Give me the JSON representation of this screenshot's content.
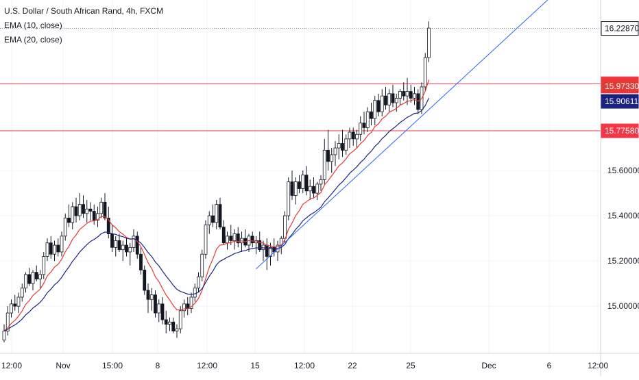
{
  "chart_data": {
    "type": "candlestick",
    "title": "U.S. Dollar / South African Rand, 4h, FXCM",
    "indicators": [
      "EMA (10, close)",
      "EMA (20, close)"
    ],
    "colors": {
      "up_candle": "#ffffff",
      "down_candle": "#131722",
      "candle_outline": "#131722",
      "ema10": "#e53935",
      "ema20": "#1a237e",
      "trendline": "#2962ff",
      "hline": "#f23645",
      "grid": "#f0f3fa",
      "axis_text": "#131722"
    },
    "y_axis": {
      "range": [
        14.84,
        16.3
      ],
      "ticks": [
        "15.00000",
        "15.20000",
        "15.40000",
        "15.60000"
      ]
    },
    "x_axis": {
      "ticks": [
        "12:00",
        "Nov",
        "15:00",
        "8",
        "12:00",
        "15",
        "12:00",
        "22",
        "25",
        "Dec",
        "6",
        "12:00"
      ]
    },
    "price_labels": [
      {
        "value": "16.22870",
        "kind": "last"
      },
      {
        "value": "15.98438",
        "kind": "hline"
      },
      {
        "value": "15.97330",
        "kind": "ema10"
      },
      {
        "value": "15.90611",
        "kind": "ema20"
      },
      {
        "value": "15.77580",
        "kind": "hline"
      }
    ],
    "horizontal_levels": [
      15.98438,
      15.7758
    ],
    "last_price": 16.2287,
    "trendline": {
      "from": [
        70,
        15.165
      ],
      "to": [
        138,
        16.305
      ]
    },
    "candles": [
      [
        14.85,
        14.92,
        14.84,
        14.89
      ],
      [
        14.89,
        15.0,
        14.87,
        14.97
      ],
      [
        14.97,
        15.03,
        14.95,
        15.01
      ],
      [
        15.01,
        15.05,
        14.98,
        15.0
      ],
      [
        15.0,
        15.06,
        14.97,
        15.04
      ],
      [
        15.04,
        15.1,
        15.02,
        15.08
      ],
      [
        15.08,
        15.15,
        15.06,
        15.14
      ],
      [
        15.14,
        15.17,
        15.09,
        15.1
      ],
      [
        15.1,
        15.16,
        15.07,
        15.15
      ],
      [
        15.15,
        15.18,
        15.11,
        15.12
      ],
      [
        15.12,
        15.16,
        15.08,
        15.14
      ],
      [
        15.14,
        15.24,
        15.12,
        15.22
      ],
      [
        15.22,
        15.3,
        15.2,
        15.28
      ],
      [
        15.28,
        15.31,
        15.21,
        15.23
      ],
      [
        15.23,
        15.29,
        15.2,
        15.27
      ],
      [
        15.27,
        15.3,
        15.22,
        15.24
      ],
      [
        15.24,
        15.33,
        15.22,
        15.31
      ],
      [
        15.31,
        15.41,
        15.29,
        15.39
      ],
      [
        15.39,
        15.45,
        15.35,
        15.37
      ],
      [
        15.37,
        15.46,
        15.34,
        15.44
      ],
      [
        15.44,
        15.48,
        15.37,
        15.4
      ],
      [
        15.4,
        15.5,
        15.38,
        15.45
      ],
      [
        15.45,
        15.49,
        15.39,
        15.41
      ],
      [
        15.41,
        15.47,
        15.37,
        15.43
      ],
      [
        15.43,
        15.46,
        15.38,
        15.42
      ],
      [
        15.42,
        15.45,
        15.36,
        15.38
      ],
      [
        15.38,
        15.44,
        15.35,
        15.41
      ],
      [
        15.41,
        15.48,
        15.39,
        15.46
      ],
      [
        15.46,
        15.5,
        15.38,
        15.39
      ],
      [
        15.39,
        15.44,
        15.3,
        15.32
      ],
      [
        15.32,
        15.36,
        15.24,
        15.26
      ],
      [
        15.26,
        15.31,
        15.22,
        15.29
      ],
      [
        15.29,
        15.32,
        15.24,
        15.25
      ],
      [
        15.25,
        15.29,
        15.2,
        15.27
      ],
      [
        15.27,
        15.3,
        15.22,
        15.24
      ],
      [
        15.24,
        15.28,
        15.18,
        15.26
      ],
      [
        15.26,
        15.34,
        15.24,
        15.31
      ],
      [
        15.31,
        15.33,
        15.21,
        15.23
      ],
      [
        15.23,
        15.26,
        15.14,
        15.16
      ],
      [
        15.16,
        15.18,
        15.05,
        15.07
      ],
      [
        15.07,
        15.1,
        14.97,
        15.03
      ],
      [
        15.03,
        15.08,
        14.98,
        15.05
      ],
      [
        15.05,
        15.07,
        14.95,
        14.97
      ],
      [
        14.97,
        15.03,
        14.93,
        15.01
      ],
      [
        15.01,
        15.04,
        14.92,
        14.94
      ],
      [
        14.94,
        14.98,
        14.88,
        14.92
      ],
      [
        14.92,
        14.95,
        14.89,
        14.93
      ],
      [
        14.93,
        14.95,
        14.88,
        14.89
      ],
      [
        14.89,
        14.92,
        14.86,
        14.9
      ],
      [
        14.9,
        15.0,
        14.88,
        14.98
      ],
      [
        14.98,
        15.03,
        14.95,
        15.01
      ],
      [
        15.01,
        15.04,
        14.96,
        14.99
      ],
      [
        14.99,
        15.06,
        14.97,
        15.04
      ],
      [
        15.04,
        15.1,
        15.02,
        15.08
      ],
      [
        15.08,
        15.15,
        15.06,
        15.13
      ],
      [
        15.13,
        15.25,
        15.11,
        15.23
      ],
      [
        15.23,
        15.38,
        15.21,
        15.36
      ],
      [
        15.36,
        15.42,
        15.32,
        15.4
      ],
      [
        15.4,
        15.45,
        15.35,
        15.37
      ],
      [
        15.37,
        15.47,
        15.34,
        15.45
      ],
      [
        15.45,
        15.48,
        15.34,
        15.35
      ],
      [
        15.35,
        15.38,
        15.27,
        15.28
      ],
      [
        15.28,
        15.33,
        15.25,
        15.31
      ],
      [
        15.31,
        15.36,
        15.27,
        15.29
      ],
      [
        15.29,
        15.34,
        15.25,
        15.32
      ],
      [
        15.32,
        15.35,
        15.26,
        15.28
      ],
      [
        15.28,
        15.33,
        15.24,
        15.3
      ],
      [
        15.3,
        15.34,
        15.26,
        15.27
      ],
      [
        15.27,
        15.32,
        15.24,
        15.31
      ],
      [
        15.31,
        15.33,
        15.26,
        15.28
      ],
      [
        15.28,
        15.31,
        15.23,
        15.29
      ],
      [
        15.29,
        15.33,
        15.24,
        15.25
      ],
      [
        15.25,
        15.29,
        15.2,
        15.27
      ],
      [
        15.27,
        15.3,
        15.16,
        15.22
      ],
      [
        15.22,
        15.28,
        15.18,
        15.26
      ],
      [
        15.26,
        15.3,
        15.22,
        15.24
      ],
      [
        15.24,
        15.29,
        15.2,
        15.27
      ],
      [
        15.27,
        15.31,
        15.23,
        15.3
      ],
      [
        15.3,
        15.42,
        15.28,
        15.4
      ],
      [
        15.4,
        15.57,
        15.38,
        15.55
      ],
      [
        15.55,
        15.6,
        15.47,
        15.49
      ],
      [
        15.49,
        15.57,
        15.45,
        15.55
      ],
      [
        15.55,
        15.58,
        15.5,
        15.52
      ],
      [
        15.52,
        15.6,
        15.5,
        15.58
      ],
      [
        15.58,
        15.62,
        15.49,
        15.51
      ],
      [
        15.51,
        15.56,
        15.47,
        15.53
      ],
      [
        15.53,
        15.57,
        15.48,
        15.5
      ],
      [
        15.5,
        15.55,
        15.47,
        15.54
      ],
      [
        15.54,
        15.58,
        15.51,
        15.56
      ],
      [
        15.56,
        15.74,
        15.54,
        15.69
      ],
      [
        15.69,
        15.78,
        15.6,
        15.64
      ],
      [
        15.64,
        15.7,
        15.59,
        15.67
      ],
      [
        15.67,
        15.73,
        15.62,
        15.7
      ],
      [
        15.7,
        15.76,
        15.65,
        15.72
      ],
      [
        15.72,
        15.78,
        15.66,
        15.69
      ],
      [
        15.69,
        15.76,
        15.67,
        15.74
      ],
      [
        15.74,
        15.79,
        15.7,
        15.77
      ],
      [
        15.77,
        15.79,
        15.71,
        15.74
      ],
      [
        15.74,
        15.78,
        15.7,
        15.76
      ],
      [
        15.76,
        15.84,
        15.73,
        15.81
      ],
      [
        15.81,
        15.86,
        15.76,
        15.79
      ],
      [
        15.79,
        15.88,
        15.77,
        15.86
      ],
      [
        15.86,
        15.9,
        15.8,
        15.83
      ],
      [
        15.83,
        15.93,
        15.8,
        15.91
      ],
      [
        15.91,
        15.94,
        15.84,
        15.86
      ],
      [
        15.86,
        15.96,
        15.84,
        15.93
      ],
      [
        15.93,
        15.97,
        15.87,
        15.89
      ],
      [
        15.89,
        15.96,
        15.86,
        15.94
      ],
      [
        15.94,
        15.98,
        15.88,
        15.9
      ],
      [
        15.9,
        15.94,
        15.86,
        15.92
      ],
      [
        15.92,
        15.96,
        15.89,
        15.95
      ],
      [
        15.95,
        15.99,
        15.91,
        15.93
      ],
      [
        15.93,
        16.01,
        15.89,
        15.95
      ],
      [
        15.95,
        15.98,
        15.9,
        15.92
      ],
      [
        15.92,
        15.97,
        15.89,
        15.94
      ],
      [
        15.94,
        15.96,
        15.85,
        15.87
      ],
      [
        15.87,
        15.99,
        15.85,
        15.97
      ],
      [
        15.97,
        16.12,
        15.95,
        16.1
      ],
      [
        16.1,
        16.26,
        16.08,
        16.23
      ]
    ]
  }
}
